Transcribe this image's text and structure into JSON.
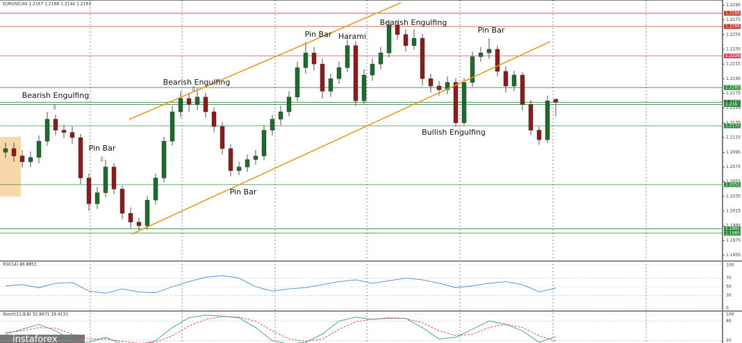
{
  "chart_data": [
    {
      "type": "candlestick",
      "title": "EURUSD,H4  1.2167 1.2168 1.2144 1.2163",
      "open": [
        1.2095,
        1.21,
        1.209,
        1.2082,
        1.2088,
        1.211,
        1.214,
        1.2125,
        1.2122,
        1.2115,
        1.206,
        1.2025,
        1.204,
        1.2075,
        1.2045,
        1.2012,
        1.2,
        1.1995,
        1.203,
        1.206,
        1.211,
        1.215,
        1.2168,
        1.216,
        1.217,
        1.215,
        1.213,
        1.21,
        1.207,
        1.2075,
        1.2085,
        1.209,
        1.2125,
        1.214,
        1.215,
        1.217,
        1.221,
        1.223,
        1.2215,
        1.2178,
        1.2195,
        1.221,
        1.224,
        1.2165,
        1.22,
        1.2215,
        1.223,
        1.2268,
        1.2255,
        1.224,
        1.225,
        1.2195,
        1.2185,
        1.218,
        1.219,
        1.2135,
        1.219,
        1.2225,
        1.223,
        1.2235,
        1.2205,
        1.2185,
        1.22,
        1.216,
        1.2125,
        1.2112,
        1.2167
      ],
      "high": [
        1.2108,
        1.2108,
        1.2098,
        1.2096,
        1.2118,
        1.215,
        1.2146,
        1.2132,
        1.213,
        1.212,
        1.2066,
        1.2048,
        1.2085,
        1.208,
        1.205,
        1.202,
        1.2006,
        1.2036,
        1.2066,
        1.2116,
        1.2158,
        1.2178,
        1.2176,
        1.2182,
        1.2176,
        1.2156,
        1.2136,
        1.2106,
        1.2082,
        1.2092,
        1.2098,
        1.2132,
        1.2146,
        1.2158,
        1.2178,
        1.2218,
        1.2245,
        1.2238,
        1.2222,
        1.2202,
        1.2218,
        1.2248,
        1.2246,
        1.2208,
        1.2222,
        1.2238,
        1.2275,
        1.2274,
        1.2262,
        1.2262,
        1.2256,
        1.2202,
        1.2192,
        1.2198,
        1.2196,
        1.2196,
        1.2232,
        1.2238,
        1.225,
        1.224,
        1.2212,
        1.2206,
        1.2204,
        1.2166,
        1.213,
        1.2172,
        1.2168
      ],
      "low": [
        1.2087,
        1.2082,
        1.2074,
        1.2075,
        1.208,
        1.2104,
        1.2118,
        1.2114,
        1.2106,
        1.2052,
        1.2015,
        1.2018,
        1.2034,
        1.2038,
        1.2004,
        1.1992,
        1.1988,
        1.199,
        1.2024,
        1.2054,
        1.2104,
        1.2142,
        1.215,
        1.2152,
        1.2142,
        1.2122,
        1.2092,
        1.2062,
        1.2064,
        1.2068,
        1.2078,
        1.2084,
        1.2118,
        1.2132,
        1.2144,
        1.2164,
        1.2202,
        1.2206,
        1.2168,
        1.217,
        1.2188,
        1.2204,
        1.2158,
        1.216,
        1.2192,
        1.2208,
        1.2224,
        1.2248,
        1.2232,
        1.2234,
        1.2186,
        1.2176,
        1.2172,
        1.2174,
        1.213,
        1.2132,
        1.2184,
        1.2218,
        1.2222,
        1.2198,
        1.2176,
        1.2178,
        1.2152,
        1.2118,
        1.2105,
        1.2108,
        1.2144
      ],
      "close": [
        1.21,
        1.209,
        1.2082,
        1.2088,
        1.211,
        1.214,
        1.2125,
        1.2122,
        1.2115,
        1.206,
        1.2025,
        1.204,
        1.2075,
        1.2045,
        1.2012,
        1.2,
        1.1995,
        1.203,
        1.206,
        1.211,
        1.215,
        1.2168,
        1.216,
        1.217,
        1.215,
        1.213,
        1.21,
        1.207,
        1.2075,
        1.2085,
        1.209,
        1.2125,
        1.214,
        1.215,
        1.217,
        1.221,
        1.223,
        1.2215,
        1.2178,
        1.2195,
        1.221,
        1.224,
        1.2165,
        1.22,
        1.2215,
        1.223,
        1.2268,
        1.2255,
        1.224,
        1.225,
        1.2195,
        1.2185,
        1.218,
        1.219,
        1.2135,
        1.219,
        1.2225,
        1.223,
        1.2235,
        1.2205,
        1.2185,
        1.22,
        1.216,
        1.2125,
        1.2112,
        1.2165,
        1.2163
      ],
      "up_color": "#1f6b2e",
      "down_color": "#8e1b1b",
      "ylim": [
        1.1948,
        1.2302
      ],
      "yticks": [
        1.2295,
        1.2275,
        1.2255,
        1.2235,
        1.2215,
        1.2195,
        1.2175,
        1.2155,
        1.2135,
        1.2115,
        1.2095,
        1.2075,
        1.2055,
        1.2035,
        1.2015,
        1.1995,
        1.1975,
        1.1955
      ],
      "levels": [
        {
          "value": 1.2284,
          "color": "#c0392b"
        },
        {
          "value": 1.2266,
          "color": "#c0392b"
        },
        {
          "value": 1.2226,
          "color": "#e0475a"
        },
        {
          "value": 1.2183,
          "color": "#2e8b3e"
        },
        {
          "value": 1.2163,
          "color": "#1e5e2a"
        },
        {
          "value": 1.216,
          "color": "#2e8b3e"
        },
        {
          "value": 1.2131,
          "color": "#2e8b3e"
        },
        {
          "value": 1.2051,
          "color": "#2e8b3e"
        },
        {
          "value": 1.1991,
          "color": "#2e8b3e"
        },
        {
          "value": 1.1985,
          "color": "#2e8b3e"
        }
      ],
      "annotations": [
        "Bearish Engulfing",
        "Pin Bar",
        "Bearish Engulfing",
        "Pin Bar",
        "Pin Bar",
        "Harami",
        "Bearish Engulfing",
        "Pin Bar",
        "Bullish Engulfing"
      ],
      "watermark": "instaforex"
    },
    {
      "type": "line",
      "title": "RSI(14) 46.8851",
      "series": [
        {
          "color": "#4a86c8",
          "values": [
            52,
            55,
            48,
            58,
            60,
            40,
            35,
            45,
            38,
            36,
            50,
            62,
            72,
            76,
            70,
            50,
            40,
            45,
            48,
            55,
            62,
            66,
            58,
            64,
            70,
            66,
            58,
            48,
            52,
            58,
            62,
            55,
            38,
            47
          ]
        }
      ],
      "ylim": [
        0,
        100
      ],
      "yticks": [
        100,
        70,
        50,
        30,
        0
      ]
    },
    {
      "type": "line",
      "title": "Stoch(21,8,8) 32.8671 19.4131",
      "series": [
        {
          "color": "#3a9a8a",
          "values": [
            40,
            55,
            70,
            50,
            20,
            15,
            30,
            10,
            5,
            20,
            60,
            90,
            98,
            95,
            90,
            60,
            20,
            10,
            15,
            40,
            80,
            92,
            85,
            90,
            88,
            60,
            25,
            30,
            55,
            80,
            70,
            50,
            15,
            33
          ]
        },
        {
          "color": "#d04040",
          "dash": true,
          "values": [
            45,
            50,
            60,
            58,
            40,
            25,
            25,
            18,
            12,
            15,
            35,
            65,
            85,
            94,
            92,
            80,
            50,
            25,
            18,
            25,
            55,
            78,
            86,
            88,
            88,
            75,
            50,
            35,
            40,
            60,
            70,
            60,
            35,
            19
          ]
        }
      ],
      "ylim": [
        0,
        100
      ],
      "yticks": [
        100,
        80,
        20
      ]
    }
  ]
}
